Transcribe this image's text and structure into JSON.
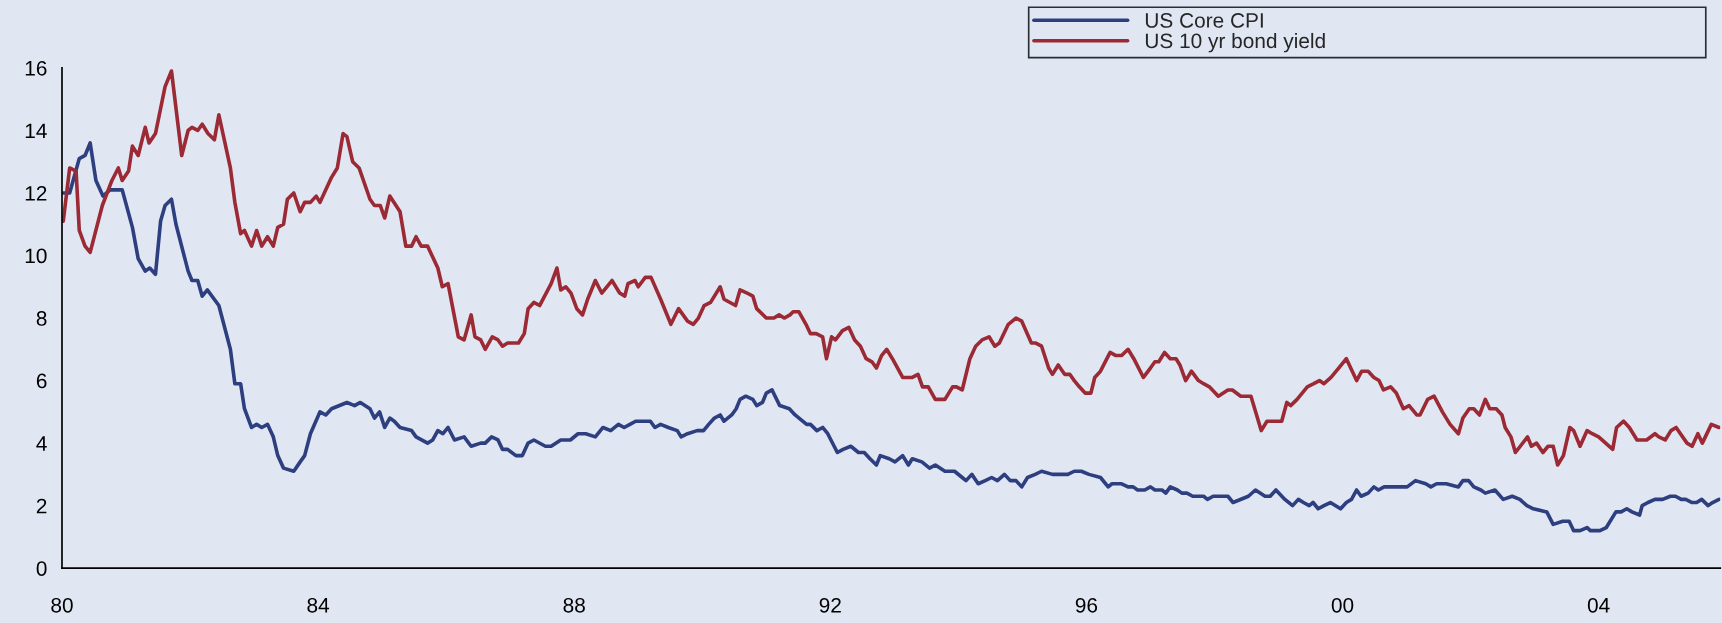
{
  "chart_data": {
    "type": "line",
    "xlim": [
      1980,
      2005.9
    ],
    "ylim": [
      0,
      16
    ],
    "xticks": [
      {
        "value": 1980,
        "label": "80"
      },
      {
        "value": 1984,
        "label": "84"
      },
      {
        "value": 1988,
        "label": "88"
      },
      {
        "value": 1992,
        "label": "92"
      },
      {
        "value": 1996,
        "label": "96"
      },
      {
        "value": 2000,
        "label": "00"
      },
      {
        "value": 2004,
        "label": "04"
      }
    ],
    "yticks": [
      0,
      2,
      4,
      6,
      8,
      10,
      12,
      14,
      16
    ],
    "grid": false,
    "legend": "top right",
    "marker": "none",
    "line_style": "solid",
    "series": [
      {
        "name": "US Core CPI",
        "color": "#2e3f80",
        "x": [
          1980.02,
          1980.12,
          1980.27,
          1980.36,
          1980.44,
          1980.53,
          1980.64,
          1980.75,
          1980.94,
          1981.1,
          1981.19,
          1981.3,
          1981.37,
          1981.46,
          1981.54,
          1981.61,
          1981.71,
          1981.78,
          1981.97,
          1982.03,
          1982.12,
          1982.19,
          1982.27,
          1982.45,
          1982.63,
          1982.7,
          1982.79,
          1982.85,
          1982.96,
          1983.04,
          1983.12,
          1983.21,
          1983.3,
          1983.37,
          1983.46,
          1983.62,
          1983.72,
          1983.79,
          1983.88,
          1984.03,
          1984.12,
          1984.21,
          1984.45,
          1984.57,
          1984.66,
          1984.81,
          1984.88,
          1984.96,
          1985.04,
          1985.12,
          1985.19,
          1985.28,
          1985.46,
          1985.53,
          1985.71,
          1985.79,
          1985.87,
          1985.95,
          1986.03,
          1986.13,
          1986.28,
          1986.39,
          1986.54,
          1986.61,
          1986.71,
          1986.81,
          1986.88,
          1986.96,
          1987.09,
          1987.19,
          1987.28,
          1987.37,
          1987.55,
          1987.64,
          1987.79,
          1987.94,
          1988.06,
          1988.18,
          1988.33,
          1988.45,
          1988.57,
          1988.69,
          1988.78,
          1988.87,
          1988.96,
          1989.09,
          1989.19,
          1989.26,
          1989.35,
          1989.47,
          1989.61,
          1989.67,
          1989.77,
          1989.92,
          1990.02,
          1990.1,
          1990.19,
          1990.28,
          1990.34,
          1990.46,
          1990.53,
          1990.59,
          1990.68,
          1990.79,
          1990.85,
          1990.94,
          1991.0,
          1991.09,
          1991.21,
          1991.36,
          1991.45,
          1991.63,
          1991.69,
          1991.79,
          1991.88,
          1991.96,
          1992.11,
          1992.2,
          1992.32,
          1992.44,
          1992.53,
          1992.62,
          1992.72,
          1992.78,
          1992.92,
          1993.01,
          1993.13,
          1993.22,
          1993.28,
          1993.43,
          1993.55,
          1993.64,
          1993.79,
          1993.94,
          1994.06,
          1994.12,
          1994.21,
          1994.31,
          1994.42,
          1994.52,
          1994.61,
          1994.72,
          1994.81,
          1994.9,
          1994.99,
          1995.08,
          1995.2,
          1995.3,
          1995.47,
          1995.71,
          1995.81,
          1995.92,
          1996.04,
          1996.22,
          1996.34,
          1996.4,
          1996.55,
          1996.65,
          1996.73,
          1996.8,
          1996.91,
          1997.0,
          1997.07,
          1997.18,
          1997.24,
          1997.31,
          1997.42,
          1997.49,
          1997.57,
          1997.66,
          1997.83,
          1997.89,
          1997.98,
          1998.21,
          1998.29,
          1998.53,
          1998.64,
          1998.79,
          1998.87,
          1998.96,
          1999.1,
          1999.22,
          1999.31,
          1999.39,
          1999.48,
          1999.54,
          1999.62,
          1999.71,
          1999.81,
          1999.97,
          2000.06,
          2000.14,
          2000.22,
          2000.29,
          2000.4,
          2000.49,
          2000.56,
          2000.65,
          2000.78,
          2000.92,
          2001.01,
          2001.14,
          2001.3,
          2001.38,
          2001.47,
          2001.62,
          2001.81,
          2001.88,
          2001.97,
          2002.05,
          2002.16,
          2002.23,
          2002.38,
          2002.51,
          2002.65,
          2002.77,
          2002.88,
          2002.98,
          2003.19,
          2003.29,
          2003.44,
          2003.54,
          2003.61,
          2003.71,
          2003.82,
          2003.87,
          2004.02,
          2004.12,
          2004.27,
          2004.35,
          2004.44,
          2004.52,
          2004.64,
          2004.68,
          2004.77,
          2004.88,
          2005.0,
          2005.12,
          2005.2,
          2005.29,
          2005.36,
          2005.46,
          2005.53,
          2005.61,
          2005.71,
          2005.78,
          2005.88
        ],
        "values": [
          12.0,
          12.0,
          13.1,
          13.2,
          13.6,
          12.4,
          11.9,
          12.1,
          12.1,
          10.9,
          9.9,
          9.5,
          9.6,
          9.4,
          11.1,
          11.6,
          11.8,
          11.0,
          9.5,
          9.2,
          9.2,
          8.7,
          8.9,
          8.4,
          7.0,
          5.9,
          5.9,
          5.1,
          4.5,
          4.6,
          4.5,
          4.6,
          4.2,
          3.6,
          3.2,
          3.1,
          3.4,
          3.6,
          4.3,
          5.0,
          4.9,
          5.1,
          5.3,
          5.2,
          5.3,
          5.1,
          4.8,
          5.0,
          4.5,
          4.8,
          4.7,
          4.5,
          4.4,
          4.2,
          4.0,
          4.1,
          4.4,
          4.3,
          4.5,
          4.1,
          4.2,
          3.9,
          4.0,
          4.0,
          4.2,
          4.1,
          3.8,
          3.8,
          3.6,
          3.6,
          4.0,
          4.1,
          3.9,
          3.9,
          4.1,
          4.1,
          4.3,
          4.3,
          4.2,
          4.5,
          4.4,
          4.6,
          4.5,
          4.6,
          4.7,
          4.7,
          4.7,
          4.5,
          4.6,
          4.5,
          4.4,
          4.2,
          4.3,
          4.4,
          4.4,
          4.6,
          4.8,
          4.9,
          4.7,
          4.9,
          5.1,
          5.4,
          5.5,
          5.4,
          5.2,
          5.3,
          5.6,
          5.7,
          5.2,
          5.1,
          4.9,
          4.6,
          4.6,
          4.4,
          4.5,
          4.3,
          3.7,
          3.8,
          3.9,
          3.7,
          3.7,
          3.5,
          3.3,
          3.6,
          3.5,
          3.4,
          3.6,
          3.3,
          3.5,
          3.4,
          3.2,
          3.3,
          3.1,
          3.1,
          2.9,
          2.8,
          3.0,
          2.7,
          2.8,
          2.9,
          2.8,
          3.0,
          2.8,
          2.8,
          2.6,
          2.9,
          3.0,
          3.1,
          3.0,
          3.0,
          3.1,
          3.1,
          3.0,
          2.9,
          2.6,
          2.7,
          2.7,
          2.6,
          2.6,
          2.5,
          2.5,
          2.6,
          2.5,
          2.5,
          2.4,
          2.6,
          2.5,
          2.4,
          2.4,
          2.3,
          2.3,
          2.2,
          2.3,
          2.3,
          2.1,
          2.3,
          2.5,
          2.3,
          2.3,
          2.5,
          2.2,
          2.0,
          2.2,
          2.1,
          2.0,
          2.1,
          1.9,
          2.0,
          2.1,
          1.9,
          2.1,
          2.2,
          2.5,
          2.3,
          2.4,
          2.6,
          2.5,
          2.6,
          2.6,
          2.6,
          2.6,
          2.8,
          2.7,
          2.6,
          2.7,
          2.7,
          2.6,
          2.8,
          2.8,
          2.6,
          2.5,
          2.4,
          2.5,
          2.2,
          2.3,
          2.2,
          2.0,
          1.9,
          1.8,
          1.4,
          1.5,
          1.5,
          1.2,
          1.2,
          1.3,
          1.2,
          1.2,
          1.3,
          1.8,
          1.8,
          1.9,
          1.8,
          1.7,
          2.0,
          2.1,
          2.2,
          2.2,
          2.3,
          2.3,
          2.2,
          2.2,
          2.1,
          2.1,
          2.2,
          2.0,
          2.1,
          2.2
        ]
      },
      {
        "name": "US 10 yr bond yield",
        "color": "#9b2a35",
        "x": [
          1980.02,
          1980.12,
          1980.22,
          1980.27,
          1980.36,
          1980.44,
          1980.63,
          1980.78,
          1980.88,
          1980.94,
          1981.04,
          1981.1,
          1981.19,
          1981.3,
          1981.36,
          1981.46,
          1981.61,
          1981.71,
          1981.87,
          1981.97,
          1982.03,
          1982.12,
          1982.19,
          1982.28,
          1982.38,
          1982.45,
          1982.63,
          1982.7,
          1982.79,
          1982.85,
          1982.96,
          1983.04,
          1983.12,
          1983.21,
          1983.3,
          1983.37,
          1983.46,
          1983.52,
          1983.62,
          1983.72,
          1983.79,
          1983.88,
          1983.97,
          1984.03,
          1984.12,
          1984.21,
          1984.3,
          1984.39,
          1984.45,
          1984.54,
          1984.64,
          1984.81,
          1984.88,
          1984.97,
          1985.04,
          1985.12,
          1985.28,
          1985.37,
          1985.46,
          1985.53,
          1985.61,
          1985.71,
          1985.87,
          1985.94,
          1986.03,
          1986.19,
          1986.28,
          1986.39,
          1986.45,
          1986.54,
          1986.61,
          1986.72,
          1986.81,
          1986.88,
          1986.96,
          1987.13,
          1987.22,
          1987.28,
          1987.37,
          1987.46,
          1987.64,
          1987.73,
          1987.79,
          1987.87,
          1987.95,
          1988.04,
          1988.13,
          1988.21,
          1988.33,
          1988.43,
          1988.59,
          1988.71,
          1988.79,
          1988.84,
          1988.95,
          1989.0,
          1989.11,
          1989.2,
          1989.35,
          1989.51,
          1989.63,
          1989.77,
          1989.86,
          1989.94,
          1990.03,
          1990.13,
          1990.28,
          1990.34,
          1990.52,
          1990.59,
          1990.7,
          1990.79,
          1990.85,
          1991.0,
          1991.12,
          1991.2,
          1991.28,
          1991.37,
          1991.42,
          1991.51,
          1991.62,
          1991.69,
          1991.78,
          1991.88,
          1991.94,
          1992.02,
          1992.08,
          1992.19,
          1992.29,
          1992.38,
          1992.47,
          1992.56,
          1992.65,
          1992.72,
          1992.8,
          1992.88,
          1992.97,
          1993.13,
          1993.28,
          1993.37,
          1993.44,
          1993.53,
          1993.64,
          1993.71,
          1993.79,
          1993.91,
          1993.97,
          1994.06,
          1994.18,
          1994.27,
          1994.37,
          1994.48,
          1994.57,
          1994.64,
          1994.78,
          1994.9,
          1994.99,
          1995.14,
          1995.21,
          1995.3,
          1995.41,
          1995.47,
          1995.56,
          1995.66,
          1995.74,
          1995.81,
          1995.89,
          1995.98,
          1996.07,
          1996.13,
          1996.22,
          1996.37,
          1996.46,
          1996.55,
          1996.65,
          1996.74,
          1996.89,
          1997.0,
          1997.07,
          1997.13,
          1997.22,
          1997.31,
          1997.4,
          1997.46,
          1997.55,
          1997.64,
          1997.75,
          1997.83,
          1997.92,
          1998.06,
          1998.21,
          1998.28,
          1998.41,
          1998.51,
          1998.57,
          1998.73,
          1998.82,
          1998.9,
          1999.05,
          1999.13,
          1999.19,
          1999.29,
          1999.45,
          1999.55,
          1999.64,
          1999.71,
          1999.82,
          1999.94,
          2000.06,
          2000.22,
          2000.3,
          2000.4,
          2000.49,
          2000.57,
          2000.64,
          2000.75,
          2000.84,
          2000.95,
          2001.04,
          2001.16,
          2001.21,
          2001.33,
          2001.43,
          2001.56,
          2001.68,
          2001.81,
          2001.88,
          2001.98,
          2002.05,
          2002.14,
          2002.23,
          2002.3,
          2002.4,
          2002.49,
          2002.54,
          2002.63,
          2002.7,
          2002.89,
          2002.95,
          2003.03,
          2003.13,
          2003.21,
          2003.29,
          2003.36,
          2003.45,
          2003.55,
          2003.61,
          2003.71,
          2003.82,
          2003.9,
          2004.0,
          2004.22,
          2004.28,
          2004.39,
          2004.48,
          2004.6,
          2004.75,
          2004.88,
          2004.94,
          2005.04,
          2005.13,
          2005.21,
          2005.38,
          2005.46,
          2005.55,
          2005.62,
          2005.76,
          2005.88
        ],
        "values": [
          11.1,
          12.8,
          12.7,
          10.8,
          10.3,
          10.1,
          11.6,
          12.4,
          12.8,
          12.4,
          12.7,
          13.5,
          13.2,
          14.1,
          13.6,
          13.9,
          15.4,
          15.9,
          13.2,
          14.0,
          14.1,
          14.0,
          14.2,
          13.9,
          13.7,
          14.5,
          12.8,
          11.7,
          10.7,
          10.8,
          10.3,
          10.8,
          10.3,
          10.6,
          10.3,
          10.9,
          11.0,
          11.8,
          12.0,
          11.4,
          11.7,
          11.7,
          11.9,
          11.7,
          12.1,
          12.5,
          12.8,
          13.9,
          13.8,
          13.0,
          12.8,
          11.8,
          11.6,
          11.6,
          11.2,
          11.9,
          11.4,
          10.3,
          10.3,
          10.6,
          10.3,
          10.3,
          9.6,
          9.0,
          9.1,
          7.4,
          7.3,
          8.1,
          7.4,
          7.3,
          7.0,
          7.4,
          7.3,
          7.1,
          7.2,
          7.2,
          7.5,
          8.3,
          8.5,
          8.4,
          9.1,
          9.6,
          8.9,
          9.0,
          8.8,
          8.3,
          8.1,
          8.6,
          9.2,
          8.8,
          9.2,
          8.8,
          8.7,
          9.1,
          9.2,
          9.0,
          9.3,
          9.3,
          8.6,
          7.8,
          8.3,
          7.9,
          7.8,
          8.0,
          8.4,
          8.5,
          9.0,
          8.6,
          8.4,
          8.9,
          8.8,
          8.7,
          8.3,
          8.0,
          8.0,
          8.1,
          8.0,
          8.1,
          8.2,
          8.2,
          7.8,
          7.5,
          7.5,
          7.4,
          6.7,
          7.4,
          7.3,
          7.6,
          7.7,
          7.3,
          7.1,
          6.7,
          6.6,
          6.4,
          6.8,
          7.0,
          6.7,
          6.1,
          6.1,
          6.2,
          5.8,
          5.8,
          5.4,
          5.4,
          5.4,
          5.8,
          5.8,
          5.7,
          6.7,
          7.1,
          7.3,
          7.4,
          7.1,
          7.2,
          7.8,
          8.0,
          7.9,
          7.2,
          7.2,
          7.1,
          6.4,
          6.2,
          6.5,
          6.2,
          6.2,
          6.0,
          5.8,
          5.6,
          5.6,
          6.1,
          6.3,
          6.9,
          6.8,
          6.8,
          7.0,
          6.7,
          6.1,
          6.4,
          6.6,
          6.6,
          6.9,
          6.7,
          6.7,
          6.5,
          6.0,
          6.3,
          6.0,
          5.9,
          5.8,
          5.5,
          5.7,
          5.7,
          5.5,
          5.5,
          5.5,
          4.4,
          4.7,
          4.7,
          4.7,
          5.3,
          5.2,
          5.4,
          5.8,
          5.9,
          6.0,
          5.9,
          6.1,
          6.4,
          6.7,
          6.0,
          6.3,
          6.3,
          6.1,
          6.0,
          5.7,
          5.8,
          5.6,
          5.1,
          5.2,
          4.9,
          4.9,
          5.4,
          5.5,
          5.0,
          4.6,
          4.3,
          4.8,
          5.1,
          5.1,
          4.9,
          5.4,
          5.1,
          5.1,
          4.9,
          4.5,
          4.2,
          3.7,
          4.2,
          3.9,
          4.0,
          3.7,
          3.9,
          3.9,
          3.3,
          3.6,
          4.5,
          4.4,
          3.9,
          4.4,
          4.3,
          4.2,
          3.8,
          4.5,
          4.7,
          4.5,
          4.1,
          4.1,
          4.3,
          4.2,
          4.1,
          4.4,
          4.5,
          4.0,
          3.9,
          4.3,
          4.0,
          4.6,
          4.5
        ]
      }
    ]
  }
}
